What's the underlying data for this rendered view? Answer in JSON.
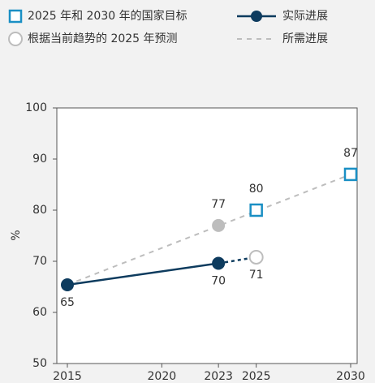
{
  "chart_data": {
    "type": "line",
    "ylabel": "%",
    "xlim": [
      2015,
      2030
    ],
    "xticks": [
      2015,
      2020,
      2023,
      2025,
      2030
    ],
    "ylim": [
      50,
      100
    ],
    "yticks": [
      50,
      60,
      70,
      80,
      90,
      100
    ],
    "series": [
      {
        "name": "2025 年和 2030 年的国家目标",
        "color": "#1a8fc4",
        "marker": "square",
        "x": [
          2025,
          2030
        ],
        "values": [
          80,
          87
        ]
      },
      {
        "name": "根据当前趋势的 2025 年预测",
        "color": "#bdbdbd",
        "marker": "open-circle",
        "x": [
          2025
        ],
        "values": [
          70.8
        ],
        "value_labels": [
          "71"
        ]
      },
      {
        "name": "实际进展",
        "color": "#0d3b5e",
        "marker": "circle",
        "line": "solid",
        "x": [
          2015,
          2023
        ],
        "values": [
          65.4,
          69.6
        ],
        "value_labels": [
          "65",
          "70"
        ]
      },
      {
        "name": "所需进展",
        "color": "#bdbdbd",
        "line": "dashed",
        "x": [
          2015,
          2030
        ],
        "values": [
          65.4,
          87
        ]
      }
    ],
    "points": [
      {
        "x": 2023,
        "value": 77,
        "color": "#bdbdbd"
      }
    ]
  }
}
